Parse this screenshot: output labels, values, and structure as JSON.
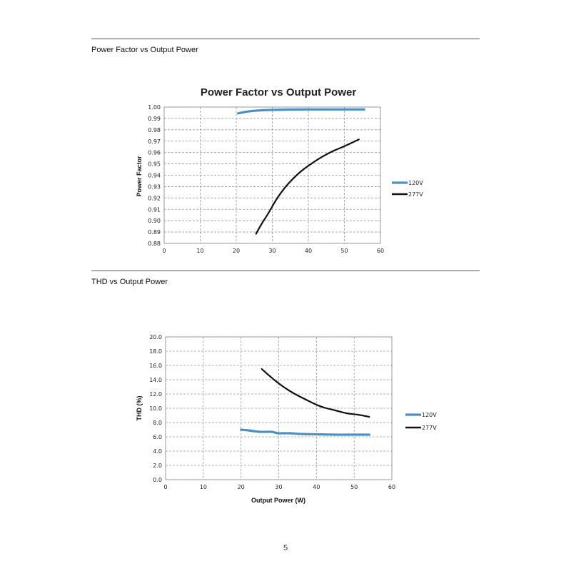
{
  "sections": [
    {
      "heading": "Power Factor vs Output Power"
    },
    {
      "heading": "THD vs Output Power"
    }
  ],
  "page_number": "5",
  "chart_data": [
    {
      "type": "line",
      "title": "Power Factor vs Output Power",
      "xlabel": "",
      "ylabel": "Power Factor",
      "xlim": [
        0,
        60
      ],
      "ylim": [
        0.88,
        1.0
      ],
      "xticks": [
        0,
        10,
        20,
        30,
        40,
        50,
        60
      ],
      "yticks": [
        0.88,
        0.89,
        0.9,
        0.91,
        0.92,
        0.93,
        0.94,
        0.95,
        0.96,
        0.97,
        0.98,
        0.99,
        1.0
      ],
      "ytick_labels": [
        "0.88",
        "0.89",
        "0.90",
        "0.91",
        "0.92",
        "0.93",
        "0.94",
        "0.95",
        "0.96",
        "0.97",
        "0.98",
        "0.99",
        "1.00"
      ],
      "grid": true,
      "legend_position": "right",
      "series": [
        {
          "name": "120V",
          "color": "#4a90c8",
          "x": [
            20.5,
            23,
            26,
            30,
            35,
            40,
            45,
            50,
            55.5
          ],
          "y": [
            0.9945,
            0.996,
            0.997,
            0.9975,
            0.9978,
            0.9979,
            0.9979,
            0.9979,
            0.9979
          ]
        },
        {
          "name": "277V",
          "color": "#111111",
          "x": [
            25.5,
            27,
            29,
            31,
            33,
            35,
            38,
            41,
            44,
            47,
            50,
            54
          ],
          "y": [
            0.8885,
            0.897,
            0.907,
            0.918,
            0.927,
            0.9345,
            0.9435,
            0.9505,
            0.9565,
            0.9615,
            0.9655,
            0.9715
          ]
        }
      ]
    },
    {
      "type": "line",
      "title": "",
      "xlabel": "Output Power (W)",
      "ylabel": "THD (%)",
      "xlim": [
        0,
        60
      ],
      "ylim": [
        0,
        20
      ],
      "xticks": [
        0,
        10,
        20,
        30,
        40,
        50,
        60
      ],
      "yticks": [
        0,
        2,
        4,
        6,
        8,
        10,
        12,
        14,
        16,
        18,
        20
      ],
      "ytick_labels": [
        "0.0",
        "2.0",
        "4.0",
        "6.0",
        "8.0",
        "10.0",
        "12.0",
        "14.0",
        "16.0",
        "18.0",
        "20.0"
      ],
      "grid": true,
      "legend_position": "right",
      "series": [
        {
          "name": "120V",
          "color": "#4a90c8",
          "x": [
            20,
            22,
            25,
            28,
            29,
            30,
            33,
            36,
            40,
            45,
            50,
            54
          ],
          "y": [
            7.0,
            6.9,
            6.7,
            6.7,
            6.6,
            6.5,
            6.5,
            6.4,
            6.35,
            6.3,
            6.3,
            6.3
          ]
        },
        {
          "name": "277V",
          "color": "#111111",
          "x": [
            25.5,
            27,
            29,
            31,
            33,
            35,
            38,
            40,
            42,
            45,
            48,
            51,
            54
          ],
          "y": [
            15.5,
            14.8,
            13.9,
            13.1,
            12.4,
            11.8,
            11.0,
            10.5,
            10.1,
            9.7,
            9.3,
            9.1,
            8.8
          ]
        }
      ]
    }
  ]
}
